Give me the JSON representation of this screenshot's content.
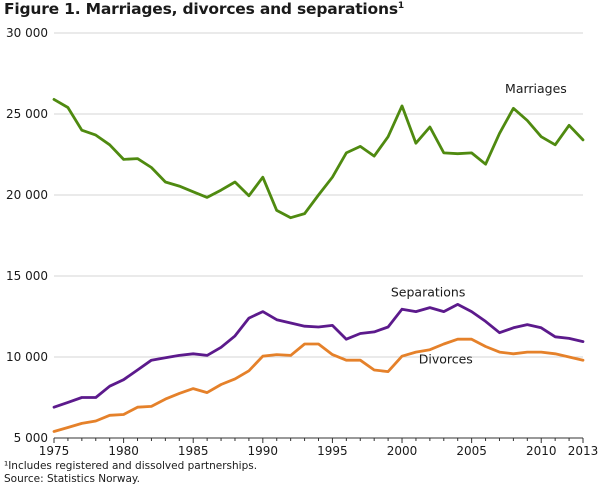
{
  "title": "Figure 1. Marriages, divorces and separations",
  "title_sup": "1",
  "footnote": "¹Includes registered and dissolved partnerships.",
  "source": "Source: Statistics Norway.",
  "colors": {
    "marriages": "#4f8a10",
    "separations": "#5c1a8c",
    "divorces": "#e5812a",
    "grid": "#d6d6d6",
    "axis": "#333333"
  },
  "chart_data": {
    "type": "line",
    "x": [
      1975,
      1976,
      1977,
      1978,
      1979,
      1980,
      1981,
      1982,
      1983,
      1984,
      1985,
      1986,
      1987,
      1988,
      1989,
      1990,
      1991,
      1992,
      1993,
      1994,
      1995,
      1996,
      1997,
      1998,
      1999,
      2000,
      2001,
      2002,
      2003,
      2004,
      2005,
      2006,
      2007,
      2008,
      2009,
      2010,
      2011,
      2012,
      2013
    ],
    "xticks": [
      1975,
      1980,
      1985,
      1990,
      1995,
      2000,
      2005,
      2010,
      2013
    ],
    "xlim": [
      1975,
      2013
    ],
    "ylim": [
      5000,
      30000
    ],
    "yticks": [
      5000,
      10000,
      15000,
      20000,
      25000,
      30000
    ],
    "ytick_labels": [
      "5 000",
      "10 000",
      "15 000",
      "20 000",
      "25 000",
      "30 000"
    ],
    "grid": "horizontal",
    "series": [
      {
        "name": "Marriages",
        "label_x": 2007.4,
        "label_y": 26300,
        "values": [
          25900,
          25400,
          24000,
          23700,
          23100,
          22200,
          22250,
          21700,
          20800,
          20550,
          20200,
          19850,
          20300,
          20800,
          19950,
          21100,
          19050,
          18600,
          18850,
          20000,
          21100,
          22600,
          23000,
          22400,
          23600,
          25500,
          23200,
          24200,
          22600,
          22550,
          22600,
          21900,
          23800,
          25350,
          24600,
          23600,
          23100,
          24300,
          23400
        ]
      },
      {
        "name": "Separations",
        "label_x": 1999.2,
        "label_y": 13750,
        "values": [
          6900,
          7200,
          7500,
          7500,
          8200,
          8600,
          9200,
          9800,
          9950,
          10100,
          10200,
          10100,
          10600,
          11300,
          12400,
          12800,
          12300,
          12100,
          11900,
          11850,
          11950,
          11100,
          11450,
          11550,
          11850,
          12950,
          12800,
          13050,
          12800,
          13250,
          12800,
          12200,
          11500,
          11800,
          12000,
          11800,
          11250,
          11150,
          10950
        ]
      },
      {
        "name": "Divorces",
        "label_x": 2001.2,
        "label_y": 9600,
        "values": [
          5400,
          5650,
          5900,
          6050,
          6400,
          6450,
          6900,
          6950,
          7400,
          7750,
          8050,
          7800,
          8300,
          8650,
          9150,
          10050,
          10150,
          10100,
          10800,
          10800,
          10150,
          9800,
          9800,
          9200,
          9100,
          10050,
          10300,
          10450,
          10800,
          11100,
          11100,
          10650,
          10300,
          10200,
          10300,
          10300,
          10200,
          10000,
          9800
        ]
      }
    ]
  }
}
